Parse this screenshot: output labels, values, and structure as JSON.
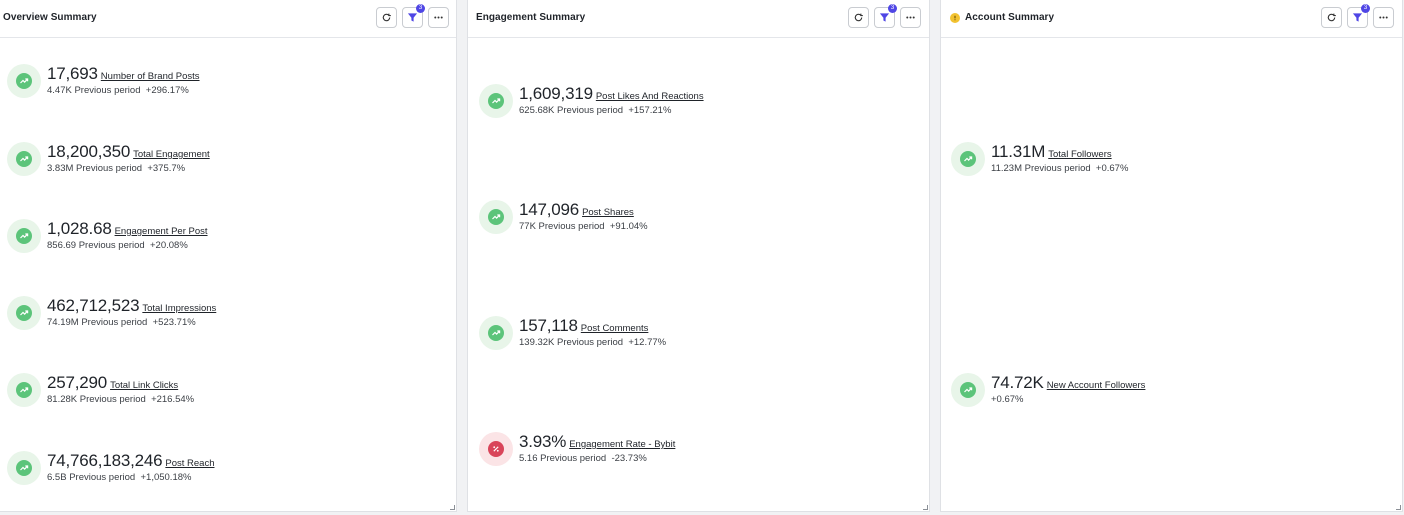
{
  "panels": [
    {
      "title": "Overview Summary",
      "filter_count": "3",
      "metrics": [
        {
          "value": "17,693",
          "label": "Number of Brand Posts",
          "prev": "4.47K",
          "prev_label": "Previous period",
          "change": "+296.17%"
        },
        {
          "value": "18,200,350",
          "label": "Total Engagement",
          "prev": "3.83M",
          "prev_label": "Previous period",
          "change": "+375.7%"
        },
        {
          "value": "1,028.68",
          "label": "Engagement Per Post",
          "prev": "856.69",
          "prev_label": "Previous period",
          "change": "+20.08%"
        },
        {
          "value": "462,712,523",
          "label": "Total Impressions",
          "prev": "74.19M",
          "prev_label": "Previous period",
          "change": "+523.71%"
        },
        {
          "value": "257,290",
          "label": "Total Link Clicks",
          "prev": "81.28K",
          "prev_label": "Previous period",
          "change": "+216.54%"
        },
        {
          "value": "74,766,183,246",
          "label": "Post Reach",
          "prev": "6.5B",
          "prev_label": "Previous period",
          "change": "+1,050.18%"
        }
      ]
    },
    {
      "title": "Engagement Summary",
      "filter_count": "3",
      "metrics": [
        {
          "value": "1,609,319",
          "label": "Post Likes And Reactions",
          "prev": "625.68K",
          "prev_label": "Previous period",
          "change": "+157.21%"
        },
        {
          "value": "147,096",
          "label": "Post Shares",
          "prev": "77K",
          "prev_label": "Previous period",
          "change": "+91.04%"
        },
        {
          "value": "157,118",
          "label": "Post Comments",
          "prev": "139.32K",
          "prev_label": "Previous period",
          "change": "+12.77%"
        },
        {
          "value": "3.93%",
          "label": "Engagement Rate - Bybit",
          "prev": "5.16",
          "prev_label": "Previous period",
          "change": "-23.73%"
        }
      ]
    },
    {
      "title": "Account Summary",
      "filter_count": "3",
      "metrics": [
        {
          "value": "11.31M",
          "label": "Total Followers",
          "prev": "11.23M",
          "prev_label": "Previous period",
          "change": "+0.67%"
        },
        {
          "value": "74.72K",
          "label": "New Account Followers",
          "change": "+0.67%"
        }
      ]
    }
  ],
  "icons": {
    "refresh": "refresh-icon",
    "filter": "filter-icon",
    "more": "more-icon",
    "trend_up": "trend-up-icon",
    "percent": "percent-badge-icon",
    "warning": "warning-icon"
  },
  "colors": {
    "trend_up_bg": "#e8f5e9",
    "trend_up": "#5cc47a",
    "percent_bg": "#fbe4e6",
    "percent": "#d9455a",
    "filter_badge": "#4f46e5",
    "filter_icon": "#4f46e5",
    "warning": "#f2c230"
  }
}
